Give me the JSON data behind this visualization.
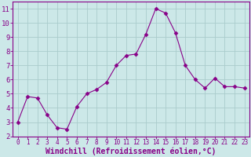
{
  "x": [
    0,
    1,
    2,
    3,
    4,
    5,
    6,
    7,
    8,
    9,
    10,
    11,
    12,
    13,
    14,
    15,
    16,
    17,
    18,
    19,
    20,
    21,
    22,
    23
  ],
  "y": [
    3.0,
    4.8,
    4.7,
    3.5,
    2.6,
    2.5,
    4.1,
    5.0,
    5.3,
    5.8,
    7.0,
    7.7,
    7.8,
    9.2,
    11.0,
    10.7,
    9.3,
    7.0,
    6.0,
    5.4,
    6.1,
    5.5,
    5.5,
    5.4
  ],
  "line_color": "#880088",
  "marker": "D",
  "marker_size": 2.5,
  "bg_color": "#cce8e8",
  "grid_color": "#aacccc",
  "xlabel": "Windchill (Refroidissement éolien,°C)",
  "xlabel_color": "#880088",
  "tick_label_color": "#880088",
  "xlim": [
    -0.5,
    23.5
  ],
  "ylim": [
    2,
    11.5
  ],
  "yticks": [
    2,
    3,
    4,
    5,
    6,
    7,
    8,
    9,
    10,
    11
  ],
  "xticks": [
    0,
    1,
    2,
    3,
    4,
    5,
    6,
    7,
    8,
    9,
    10,
    11,
    12,
    13,
    14,
    15,
    16,
    17,
    18,
    19,
    20,
    21,
    22,
    23
  ],
  "spine_color": "#880088",
  "tick_fontsize": 5.5,
  "ytick_fontsize": 6.5,
  "xlabel_fontsize": 7.0
}
